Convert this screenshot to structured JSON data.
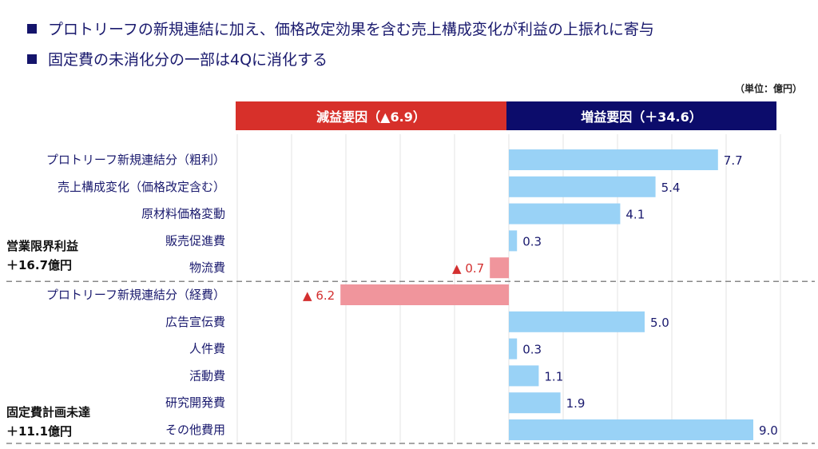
{
  "bullets": [
    "プロトリーフの新規連結に加え、価格改定効果を含む売上構成変化が利益の上振れに寄与",
    "固定費の未消化分の一部は4Qに消化する"
  ],
  "unit": "（単位：億円）",
  "headers": {
    "negative": "減益要因（▲6.9）",
    "positive": "増益要因（＋34.6）"
  },
  "groups": [
    {
      "title": "営業限界利益",
      "total": "＋16.7億円"
    },
    {
      "title": "固定費計画未達",
      "total": "＋11.1億円"
    }
  ],
  "colors": {
    "positive_bar": "#99d2f6",
    "negative_bar": "#f0959c",
    "negative_header": "#d7302a",
    "positive_header": "#0c0c6b",
    "label": "#1a1a6e",
    "negative_text": "#d32f2f"
  },
  "chart_data": {
    "type": "bar",
    "orientation": "horizontal",
    "categories": [
      "プロトリーフ新規連結分（粗利）",
      "売上構成変化（価格改定含む）",
      "原材料価格変動",
      "販売促進費",
      "物流費",
      "プロトリーフ新規連結分（経費）",
      "広告宣伝費",
      "人件費",
      "活動費",
      "研究開発費",
      "その他費用"
    ],
    "values": [
      7.7,
      5.4,
      4.1,
      0.3,
      -0.7,
      -6.2,
      5.0,
      0.3,
      1.1,
      1.9,
      9.0
    ],
    "value_labels": [
      "7.7",
      "5.4",
      "4.1",
      "0.3",
      "▲ 0.7",
      "▲ 6.2",
      "5.0",
      "0.3",
      "1.1",
      "1.9",
      "9.0"
    ],
    "xlim": [
      -10,
      10
    ],
    "grid": true,
    "group_breaks_after": [
      4,
      10
    ]
  }
}
